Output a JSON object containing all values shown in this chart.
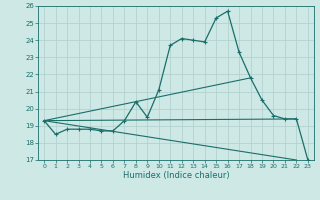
{
  "title": "",
  "xlabel": "Humidex (Indice chaleur)",
  "xlim": [
    -0.5,
    23.5
  ],
  "ylim": [
    17,
    26
  ],
  "yticks": [
    17,
    18,
    19,
    20,
    21,
    22,
    23,
    24,
    25,
    26
  ],
  "xticks": [
    0,
    1,
    2,
    3,
    4,
    5,
    6,
    7,
    8,
    9,
    10,
    11,
    12,
    13,
    14,
    15,
    16,
    17,
    18,
    19,
    20,
    21,
    22,
    23
  ],
  "bg_color": "#cde8e5",
  "line_color": "#1a6e6a",
  "grid_color": "#aecfcc",
  "line1_x": [
    0,
    1,
    2,
    3,
    4,
    5,
    6,
    7,
    8,
    9,
    10,
    11,
    12,
    13,
    14,
    15,
    16,
    17,
    18,
    19,
    20,
    21,
    22,
    23
  ],
  "line1_y": [
    19.3,
    18.5,
    18.8,
    18.8,
    18.8,
    18.7,
    18.7,
    19.3,
    20.4,
    19.5,
    21.1,
    23.7,
    24.1,
    24.0,
    23.9,
    25.3,
    25.7,
    23.3,
    21.8,
    20.5,
    19.6,
    19.4,
    19.4,
    17.0
  ],
  "line2_x": [
    0,
    22
  ],
  "line2_y": [
    19.3,
    17.0
  ],
  "line3_x": [
    0,
    18
  ],
  "line3_y": [
    19.3,
    21.8
  ],
  "line4_x": [
    0,
    22
  ],
  "line4_y": [
    19.3,
    19.4
  ]
}
